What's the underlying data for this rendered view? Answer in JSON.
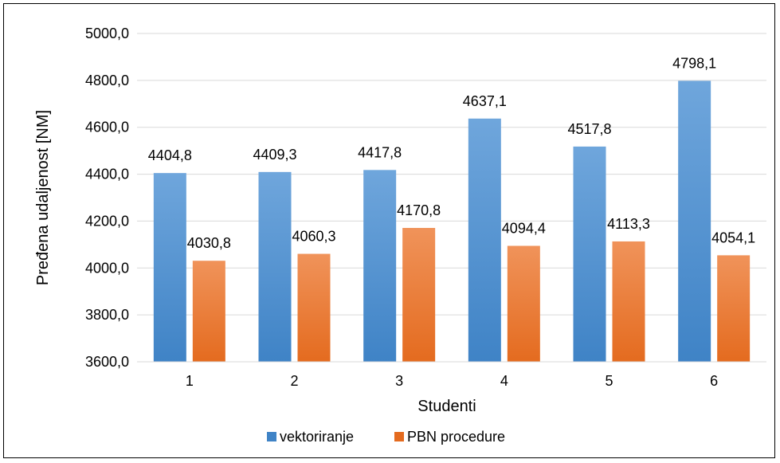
{
  "chart_data": {
    "type": "bar",
    "title": "",
    "xlabel": "Studenti",
    "ylabel": "Pređena udaljenost [NM]",
    "categories": [
      "1",
      "2",
      "3",
      "4",
      "5",
      "6"
    ],
    "series": [
      {
        "name": "vektoriranje",
        "values": [
          4404.8,
          4409.3,
          4417.8,
          4637.1,
          4517.8,
          4798.1
        ],
        "labels": [
          "4404,8",
          "4409,3",
          "4417,8",
          "4637,1",
          "4517,8",
          "4798,1"
        ],
        "color_top": "#6FA6DC",
        "color_bottom": "#3F83C6"
      },
      {
        "name": "PBN procedure",
        "values": [
          4030.8,
          4060.3,
          4170.8,
          4094.4,
          4113.3,
          4054.1
        ],
        "labels": [
          "4030,8",
          "4060,3",
          "4170,8",
          "4094,4",
          "4113,3",
          "4054,1"
        ],
        "color_top": "#F0935A",
        "color_bottom": "#E46B1F"
      }
    ],
    "ylim": [
      3600,
      5000
    ],
    "yticks": [
      3600,
      3800,
      4000,
      4200,
      4400,
      4600,
      4800,
      5000
    ],
    "ytick_labels": [
      "3600,0",
      "3800,0",
      "4000,0",
      "4200,0",
      "4400,0",
      "4600,0",
      "4800,0",
      "5000,0"
    ],
    "grid": true,
    "gridline_color": "#D9D9D9",
    "legend_position": "bottom"
  }
}
